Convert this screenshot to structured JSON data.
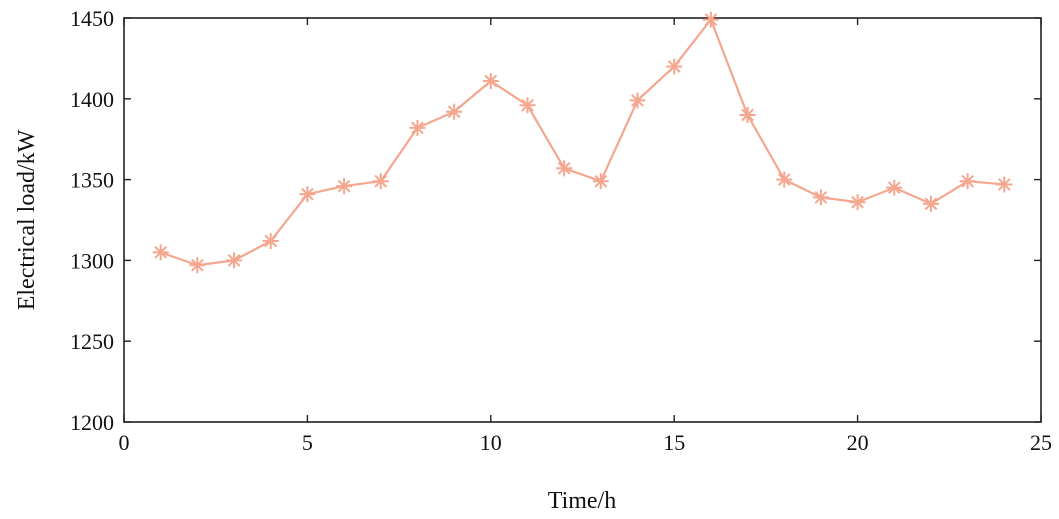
{
  "chart_data": {
    "type": "line",
    "xlabel": "Time/h",
    "ylabel": "Electrical load/kW",
    "xlim": [
      0,
      25
    ],
    "ylim": [
      1200,
      1450
    ],
    "xticks": [
      0,
      5,
      10,
      15,
      20,
      25
    ],
    "yticks": [
      1200,
      1250,
      1300,
      1350,
      1400,
      1450
    ],
    "grid": false,
    "marker": "asterisk",
    "color": "#F4A78E",
    "series": [
      {
        "x": [
          1,
          2,
          3,
          4,
          5,
          6,
          7,
          8,
          9,
          10,
          11,
          12,
          13,
          14,
          15,
          16,
          17,
          18,
          19,
          20,
          21,
          22,
          23,
          24
        ],
        "values": [
          1305,
          1297,
          1300,
          1312,
          1341,
          1346,
          1349,
          1382,
          1392,
          1411,
          1396,
          1357,
          1349,
          1399,
          1420,
          1449,
          1390,
          1350,
          1339,
          1336,
          1345,
          1335,
          1349,
          1347
        ]
      }
    ]
  }
}
